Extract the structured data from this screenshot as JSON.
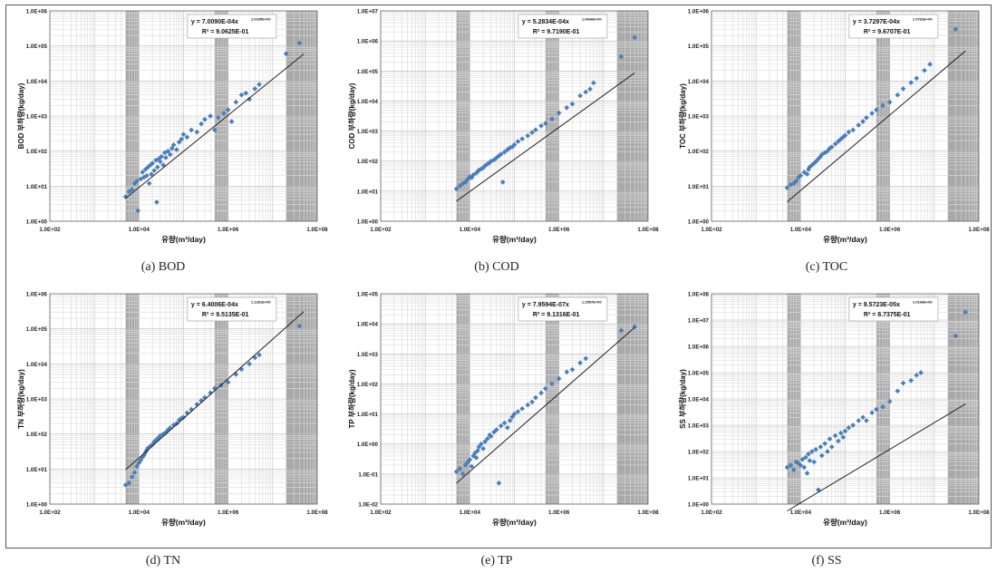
{
  "chart_data": [
    {
      "panel": "a",
      "type": "scatter",
      "caption": "(a) BOD",
      "xlabel": "유량(m³/day)",
      "ylabel": "BOD 부하량(kg/day)",
      "x_scale": "log",
      "y_scale": "log",
      "xlim": [
        100,
        100000000
      ],
      "ylim": [
        1,
        1000000
      ],
      "x_ticks": [
        "1.0E+02",
        "1.0E+04",
        "1.0E+06",
        "1.0E+08"
      ],
      "y_ticks": [
        "1.0E+00",
        "1.0E+01",
        "1.0E+02",
        "1.0E+03",
        "1.0E+04",
        "1.0E+05",
        "1.0E+06"
      ],
      "equation": "y = 7.0090E-04x",
      "equation_exp": "1.0295E+00",
      "r_squared": "R² = 9.0625E-01",
      "fit": {
        "a": 0.0007009,
        "b": 1.0295
      },
      "scatter_log": 0.32,
      "points": [
        [
          5000,
          5
        ],
        [
          6000,
          7
        ],
        [
          7000,
          8
        ],
        [
          8000,
          12
        ],
        [
          9000,
          14
        ],
        [
          9500,
          2
        ],
        [
          11000,
          16
        ],
        [
          12000,
          25
        ],
        [
          13000,
          18
        ],
        [
          14000,
          30
        ],
        [
          15000,
          20
        ],
        [
          16000,
          35
        ],
        [
          17000,
          12
        ],
        [
          18000,
          40
        ],
        [
          19000,
          22
        ],
        [
          20000,
          45
        ],
        [
          22000,
          28
        ],
        [
          24000,
          55
        ],
        [
          25000,
          3.5
        ],
        [
          26000,
          35
        ],
        [
          28000,
          60
        ],
        [
          30000,
          50
        ],
        [
          32000,
          70
        ],
        [
          35000,
          40
        ],
        [
          38000,
          90
        ],
        [
          40000,
          65
        ],
        [
          45000,
          100
        ],
        [
          50000,
          80
        ],
        [
          55000,
          120
        ],
        [
          60000,
          150
        ],
        [
          70000,
          110
        ],
        [
          80000,
          180
        ],
        [
          90000,
          220
        ],
        [
          100000,
          300
        ],
        [
          120000,
          250
        ],
        [
          150000,
          400
        ],
        [
          200000,
          350
        ],
        [
          250000,
          600
        ],
        [
          300000,
          800
        ],
        [
          400000,
          1000
        ],
        [
          500000,
          400
        ],
        [
          600000,
          900
        ],
        [
          800000,
          1200
        ],
        [
          1000000,
          1500
        ],
        [
          1200000,
          700
        ],
        [
          1500000,
          2500
        ],
        [
          2000000,
          4000
        ],
        [
          2500000,
          4500
        ],
        [
          3000000,
          3000
        ],
        [
          4000000,
          6000
        ],
        [
          5000000,
          8000
        ],
        [
          20000000,
          60000
        ],
        [
          40000000,
          120000
        ]
      ]
    },
    {
      "panel": "b",
      "type": "scatter",
      "caption": "(b) COD",
      "xlabel": "유량(m³/day)",
      "ylabel": "COD 부하량(kg/day)",
      "x_scale": "log",
      "y_scale": "log",
      "xlim": [
        100,
        100000000
      ],
      "ylim": [
        1,
        10000000
      ],
      "x_ticks": [
        "1.0E+02",
        "1.0E+04",
        "1.0E+06",
        "1.0E+08"
      ],
      "y_ticks": [
        "1.0E+00",
        "1.0E+01",
        "1.0E+02",
        "1.0E+03",
        "1.0E+04",
        "1.0E+05",
        "1.0E+06",
        "1.0E+07"
      ],
      "equation": "y = 5.2834E-04x",
      "equation_exp": "1.0666E+00",
      "r_squared": "R² = 9.7190E-01",
      "fit": {
        "a": 0.00052834,
        "b": 1.0666
      },
      "scatter_log": 0.18,
      "points": [
        [
          5000,
          12
        ],
        [
          6000,
          15
        ],
        [
          7000,
          18
        ],
        [
          8000,
          20
        ],
        [
          9000,
          25
        ],
        [
          10000,
          30
        ],
        [
          11000,
          28
        ],
        [
          12000,
          35
        ],
        [
          14000,
          40
        ],
        [
          15000,
          45
        ],
        [
          16000,
          50
        ],
        [
          18000,
          55
        ],
        [
          20000,
          60
        ],
        [
          22000,
          70
        ],
        [
          25000,
          80
        ],
        [
          28000,
          90
        ],
        [
          30000,
          100
        ],
        [
          35000,
          110
        ],
        [
          40000,
          130
        ],
        [
          45000,
          150
        ],
        [
          50000,
          170
        ],
        [
          55000,
          20
        ],
        [
          60000,
          200
        ],
        [
          70000,
          240
        ],
        [
          80000,
          280
        ],
        [
          90000,
          300
        ],
        [
          100000,
          350
        ],
        [
          120000,
          450
        ],
        [
          150000,
          550
        ],
        [
          200000,
          700
        ],
        [
          250000,
          900
        ],
        [
          300000,
          1100
        ],
        [
          400000,
          1500
        ],
        [
          500000,
          1800
        ],
        [
          700000,
          2500
        ],
        [
          1000000,
          4000
        ],
        [
          1500000,
          6000
        ],
        [
          2000000,
          8000
        ],
        [
          3000000,
          15000
        ],
        [
          4000000,
          20000
        ],
        [
          5000000,
          25000
        ],
        [
          6000000,
          40000
        ],
        [
          25000000,
          300000
        ],
        [
          50000000,
          1300000
        ]
      ]
    },
    {
      "panel": "c",
      "type": "scatter",
      "caption": "(c) TOC",
      "xlabel": "유량(m³/day)",
      "ylabel": "TOC 부하량(kg/day)",
      "x_scale": "log",
      "y_scale": "log",
      "xlim": [
        100,
        100000000
      ],
      "ylim": [
        1,
        1000000
      ],
      "x_ticks": [
        "1.0E+02",
        "1.0E+04",
        "1.0E+06",
        "1.0E+08"
      ],
      "y_ticks": [
        "1.0E+00",
        "1.0E+01",
        "1.0E+02",
        "1.0E+03",
        "1.0E+04",
        "1.0E+05",
        "1.0E+06"
      ],
      "equation": "y = 3.7297E-04x",
      "equation_exp": "1.0762E+00",
      "r_squared": "R² = 9.6707E-01",
      "fit": {
        "a": 0.00037297,
        "b": 1.0762
      },
      "scatter_log": 0.2,
      "points": [
        [
          5000,
          9
        ],
        [
          6000,
          11
        ],
        [
          7000,
          12
        ],
        [
          8000,
          14
        ],
        [
          9000,
          18
        ],
        [
          10000,
          20
        ],
        [
          12000,
          25
        ],
        [
          14000,
          22
        ],
        [
          15000,
          30
        ],
        [
          16000,
          35
        ],
        [
          18000,
          40
        ],
        [
          20000,
          45
        ],
        [
          22000,
          50
        ],
        [
          25000,
          60
        ],
        [
          28000,
          70
        ],
        [
          30000,
          80
        ],
        [
          35000,
          90
        ],
        [
          40000,
          100
        ],
        [
          45000,
          120
        ],
        [
          50000,
          130
        ],
        [
          60000,
          160
        ],
        [
          70000,
          190
        ],
        [
          80000,
          220
        ],
        [
          90000,
          250
        ],
        [
          100000,
          280
        ],
        [
          120000,
          350
        ],
        [
          150000,
          400
        ],
        [
          200000,
          550
        ],
        [
          250000,
          700
        ],
        [
          300000,
          900
        ],
        [
          400000,
          1200
        ],
        [
          500000,
          1500
        ],
        [
          700000,
          2000
        ],
        [
          1000000,
          2500
        ],
        [
          1500000,
          4000
        ],
        [
          2000000,
          6000
        ],
        [
          3000000,
          9000
        ],
        [
          4000000,
          12000
        ],
        [
          6000000,
          20000
        ],
        [
          8000000,
          30000
        ],
        [
          30000000,
          300000
        ]
      ]
    },
    {
      "panel": "d",
      "type": "scatter",
      "caption": "(d) TN",
      "xlabel": "유량(m³/day)",
      "ylabel": "TN 부하량(kg/day)",
      "x_scale": "log",
      "y_scale": "log",
      "xlim": [
        100,
        100000000
      ],
      "ylim": [
        1,
        1000000
      ],
      "x_ticks": [
        "1.0E+02",
        "1.0E+04",
        "1.0E+06",
        "1.0E+08"
      ],
      "y_ticks": [
        "1.0E+00",
        "1.0E+01",
        "1.0E+02",
        "1.0E+03",
        "1.0E+04",
        "1.0E+05",
        "1.0E+06"
      ],
      "equation": "y = 6.4006E-04x",
      "equation_exp": "1.1281E+00",
      "r_squared": "R² = 9.5135E-01",
      "fit": {
        "a": 0.00064006,
        "b": 1.1281
      },
      "scatter_log": 0.2,
      "points": [
        [
          5000,
          3.5
        ],
        [
          6000,
          4
        ],
        [
          7000,
          6
        ],
        [
          8000,
          8
        ],
        [
          9000,
          12
        ],
        [
          10000,
          15
        ],
        [
          11000,
          18
        ],
        [
          12000,
          22
        ],
        [
          13000,
          25
        ],
        [
          14000,
          30
        ],
        [
          15000,
          35
        ],
        [
          16000,
          40
        ],
        [
          18000,
          45
        ],
        [
          20000,
          50
        ],
        [
          22000,
          60
        ],
        [
          25000,
          70
        ],
        [
          28000,
          80
        ],
        [
          30000,
          90
        ],
        [
          35000,
          100
        ],
        [
          40000,
          110
        ],
        [
          45000,
          130
        ],
        [
          50000,
          150
        ],
        [
          60000,
          180
        ],
        [
          70000,
          200
        ],
        [
          80000,
          250
        ],
        [
          90000,
          280
        ],
        [
          100000,
          300
        ],
        [
          120000,
          400
        ],
        [
          150000,
          500
        ],
        [
          200000,
          700
        ],
        [
          250000,
          900
        ],
        [
          300000,
          1100
        ],
        [
          400000,
          1500
        ],
        [
          500000,
          2000
        ],
        [
          700000,
          2500
        ],
        [
          1000000,
          3000
        ],
        [
          1500000,
          5000
        ],
        [
          2000000,
          7000
        ],
        [
          3000000,
          10000
        ],
        [
          4000000,
          15000
        ],
        [
          5000000,
          18000
        ],
        [
          40000000,
          120000
        ]
      ]
    },
    {
      "panel": "e",
      "type": "scatter",
      "caption": "(e) TP",
      "xlabel": "유량(m³/day)",
      "ylabel": "TP 부하량(kg/day)",
      "x_scale": "log",
      "y_scale": "log",
      "xlim": [
        100,
        100000000
      ],
      "ylim": [
        0.01,
        100000
      ],
      "x_ticks": [
        "1.0E+02",
        "1.0E+04",
        "1.0E+06",
        "1.0E+08"
      ],
      "y_ticks": [
        "1.0E-02",
        "1.0E-01",
        "1.0E+00",
        "1.0E+01",
        "1.0E+02",
        "1.0E+03",
        "1.0E+04",
        "1.0E+05"
      ],
      "equation": "y = 7.9594E-07x",
      "equation_exp": "1.2957E+00",
      "r_squared": "R² = 9.1316E-01",
      "fit": {
        "a": 7.9594e-07,
        "b": 1.2957
      },
      "scatter_log": 0.35,
      "points": [
        [
          5000,
          0.12
        ],
        [
          6000,
          0.15
        ],
        [
          7000,
          0.1
        ],
        [
          8000,
          0.2
        ],
        [
          9000,
          0.25
        ],
        [
          10000,
          0.3
        ],
        [
          11000,
          0.18
        ],
        [
          12000,
          0.4
        ],
        [
          13000,
          0.5
        ],
        [
          14000,
          0.35
        ],
        [
          15000,
          0.6
        ],
        [
          16000,
          0.8
        ],
        [
          18000,
          1
        ],
        [
          20000,
          0.7
        ],
        [
          22000,
          1.2
        ],
        [
          25000,
          1.5
        ],
        [
          28000,
          2
        ],
        [
          30000,
          1.8
        ],
        [
          35000,
          2.5
        ],
        [
          40000,
          3
        ],
        [
          45000,
          0.05
        ],
        [
          50000,
          4
        ],
        [
          60000,
          5
        ],
        [
          70000,
          3.5
        ],
        [
          80000,
          6
        ],
        [
          90000,
          8
        ],
        [
          100000,
          10
        ],
        [
          120000,
          12
        ],
        [
          150000,
          15
        ],
        [
          200000,
          20
        ],
        [
          250000,
          25
        ],
        [
          300000,
          35
        ],
        [
          400000,
          50
        ],
        [
          500000,
          70
        ],
        [
          700000,
          100
        ],
        [
          1000000,
          150
        ],
        [
          1500000,
          250
        ],
        [
          2000000,
          300
        ],
        [
          3000000,
          500
        ],
        [
          4000000,
          700
        ],
        [
          25000000,
          6000
        ],
        [
          50000000,
          8000
        ]
      ]
    },
    {
      "panel": "f",
      "type": "scatter",
      "caption": "(f) SS",
      "xlabel": "유량(m³/day)",
      "ylabel": "SS 부하량(kg/day)",
      "x_scale": "log",
      "y_scale": "log",
      "xlim": [
        100,
        100000000
      ],
      "ylim": [
        1,
        100000000
      ],
      "x_ticks": [
        "1.0E+02",
        "1.0E+04",
        "1.0E+06",
        "1.0E+08"
      ],
      "y_ticks": [
        "1.0E+00",
        "1.0E+01",
        "1.0E+02",
        "1.0E+03",
        "1.0E+04",
        "1.0E+05",
        "1.0E+06",
        "1.0E+07",
        "1.0E+08"
      ],
      "equation": "y = 9.5723E-05x",
      "equation_exp": "1.0166E+00",
      "r_squared": "R² = 8.7375E-01",
      "fit": {
        "a": 9.5723e-05,
        "b": 1.0166
      },
      "scatter_log": 0.4,
      "points": [
        [
          5000,
          25
        ],
        [
          6000,
          30
        ],
        [
          7000,
          20
        ],
        [
          8000,
          40
        ],
        [
          9000,
          35
        ],
        [
          10000,
          30
        ],
        [
          11000,
          50
        ],
        [
          12000,
          25
        ],
        [
          13000,
          60
        ],
        [
          14000,
          15
        ],
        [
          15000,
          80
        ],
        [
          16000,
          45
        ],
        [
          18000,
          100
        ],
        [
          20000,
          40
        ],
        [
          22000,
          120
        ],
        [
          25000,
          3.5
        ],
        [
          28000,
          150
        ],
        [
          30000,
          70
        ],
        [
          35000,
          200
        ],
        [
          40000,
          100
        ],
        [
          45000,
          300
        ],
        [
          50000,
          150
        ],
        [
          60000,
          400
        ],
        [
          70000,
          250
        ],
        [
          80000,
          500
        ],
        [
          90000,
          350
        ],
        [
          100000,
          600
        ],
        [
          120000,
          800
        ],
        [
          150000,
          1000
        ],
        [
          200000,
          1500
        ],
        [
          250000,
          2000
        ],
        [
          300000,
          1500
        ],
        [
          400000,
          3000
        ],
        [
          500000,
          4000
        ],
        [
          700000,
          5000
        ],
        [
          1000000,
          8000
        ],
        [
          1500000,
          20000
        ],
        [
          2000000,
          40000
        ],
        [
          3000000,
          50000
        ],
        [
          4000000,
          80000
        ],
        [
          5000000,
          100000
        ],
        [
          30000000,
          2500000
        ],
        [
          50000000,
          20000000
        ]
      ]
    }
  ]
}
